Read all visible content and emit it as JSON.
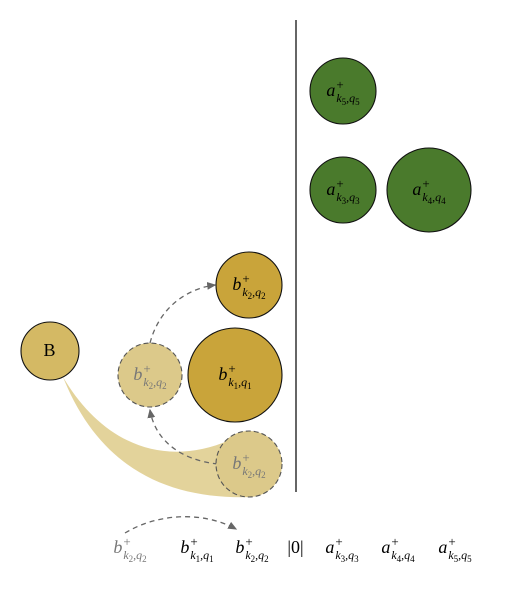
{
  "nodes": [
    {
      "label": {
        "base": "B"
      }
    },
    {
      "label": {
        "base": "b",
        "sup": "+",
        "sub": [
          "k",
          "2",
          ",q",
          "2"
        ]
      }
    },
    {
      "label": {
        "base": "b",
        "sup": "+",
        "sub": [
          "k",
          "1",
          ",q",
          "1"
        ]
      }
    },
    {
      "label": {
        "base": "b",
        "sup": "+",
        "sub": [
          "k",
          "2",
          ",q",
          "2"
        ]
      }
    },
    {
      "label": {
        "base": "b",
        "sup": "+",
        "sub": [
          "k",
          "2",
          ",q",
          "2"
        ]
      }
    },
    {
      "label": {
        "base": "a",
        "sup": "+",
        "sub": [
          "k",
          "5",
          ",q",
          "5"
        ]
      }
    },
    {
      "label": {
        "base": "a",
        "sup": "+",
        "sub": [
          "k",
          "3",
          ",q",
          "3"
        ]
      }
    },
    {
      "label": {
        "base": "a",
        "sup": "+",
        "sub": [
          "k",
          "4",
          ",q",
          "4"
        ]
      }
    }
  ],
  "sequence": [
    {
      "base": "b",
      "sup": "+",
      "sub": [
        "k",
        "2",
        ",q",
        "2"
      ]
    },
    {
      "base": "b",
      "sup": "+",
      "sub": [
        "k",
        "1",
        ",q",
        "1"
      ]
    },
    {
      "base": "b",
      "sup": "+",
      "sub": [
        "k",
        "2",
        ",q",
        "2"
      ]
    },
    {
      "base": "|0|"
    },
    {
      "base": "a",
      "sup": "+",
      "sub": [
        "k",
        "3",
        ",q",
        "3"
      ]
    },
    {
      "base": "a",
      "sup": "+",
      "sub": [
        "k",
        "4",
        ",q",
        "4"
      ]
    },
    {
      "base": "a",
      "sup": "+",
      "sub": [
        "k",
        "5",
        ",q",
        "5"
      ]
    }
  ]
}
